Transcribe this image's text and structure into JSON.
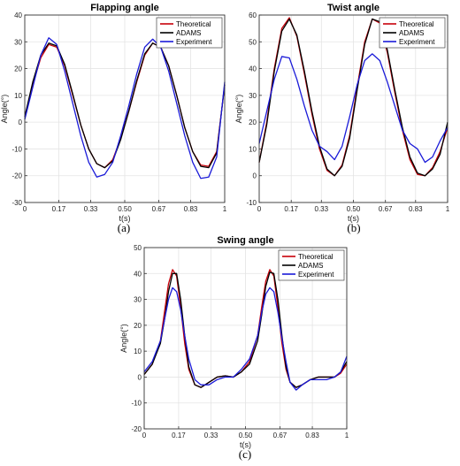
{
  "chart_data": [
    {
      "type": "line",
      "title": "Flapping angle",
      "xlabel": "t(s)",
      "ylabel": "Angle(°)",
      "caption": "(a)",
      "xlim": [
        0,
        1
      ],
      "ylim": [
        -30,
        40
      ],
      "xticks": [
        "0",
        "0.17",
        "0.33",
        "0.50",
        "0.67",
        "0.83",
        "1"
      ],
      "yticks": [
        "-30",
        "-20",
        "-10",
        "0",
        "10",
        "20",
        "30",
        "40"
      ],
      "legend_position": "top-right",
      "series": [
        {
          "name": "Theoretical",
          "color": "#c8000a",
          "x": [
            0,
            0.04,
            0.08,
            0.12,
            0.16,
            0.2,
            0.24,
            0.28,
            0.32,
            0.36,
            0.4,
            0.44,
            0.48,
            0.52,
            0.56,
            0.6,
            0.64,
            0.68,
            0.72,
            0.76,
            0.8,
            0.84,
            0.88,
            0.92,
            0.96,
            1.0
          ],
          "y": [
            2,
            14,
            24,
            29,
            28,
            21,
            10,
            -1,
            -10,
            -15.5,
            -17,
            -14,
            -6,
            4,
            15,
            25,
            29.5,
            28,
            21,
            10,
            -2,
            -11,
            -16,
            -16.5,
            -11,
            14
          ]
        },
        {
          "name": "ADAMS",
          "color": "#000000",
          "x": [
            0,
            0.04,
            0.08,
            0.12,
            0.16,
            0.2,
            0.24,
            0.28,
            0.32,
            0.36,
            0.4,
            0.44,
            0.48,
            0.52,
            0.56,
            0.6,
            0.64,
            0.68,
            0.72,
            0.76,
            0.8,
            0.84,
            0.88,
            0.92,
            0.96,
            1.0
          ],
          "y": [
            2,
            15,
            25,
            29.5,
            28.5,
            21.5,
            10.5,
            -1,
            -10,
            -15.5,
            -17,
            -14.5,
            -6.5,
            4,
            15.5,
            25.5,
            29.5,
            28,
            21,
            10,
            -2,
            -11,
            -16.5,
            -17,
            -11.5,
            14
          ]
        },
        {
          "name": "Experiment",
          "color": "#1a1ad8",
          "x": [
            0,
            0.04,
            0.08,
            0.12,
            0.16,
            0.2,
            0.24,
            0.28,
            0.32,
            0.36,
            0.4,
            0.44,
            0.48,
            0.52,
            0.56,
            0.6,
            0.64,
            0.68,
            0.72,
            0.76,
            0.8,
            0.84,
            0.88,
            0.92,
            0.96,
            1.0
          ],
          "y": [
            1,
            13,
            25,
            31.5,
            29,
            19,
            7,
            -5,
            -15,
            -20.5,
            -19.5,
            -15,
            -5,
            6,
            18,
            28,
            31,
            28,
            19,
            7,
            -5,
            -15,
            -21,
            -20.5,
            -13,
            15
          ]
        }
      ]
    },
    {
      "type": "line",
      "title": "Twist angle",
      "xlabel": "t(s)",
      "ylabel": "Angle(°)",
      "caption": "(b)",
      "xlim": [
        0,
        1
      ],
      "ylim": [
        -10,
        60
      ],
      "xticks": [
        "0",
        "0.17",
        "0.33",
        "0.50",
        "0.67",
        "0.83",
        "1"
      ],
      "yticks": [
        "-10",
        "0",
        "10",
        "20",
        "30",
        "40",
        "50",
        "60"
      ],
      "legend_position": "top-right",
      "series": [
        {
          "name": "Theoretical",
          "color": "#c8000a",
          "x": [
            0,
            0.04,
            0.08,
            0.12,
            0.16,
            0.2,
            0.24,
            0.28,
            0.32,
            0.36,
            0.4,
            0.44,
            0.48,
            0.52,
            0.56,
            0.6,
            0.64,
            0.68,
            0.72,
            0.76,
            0.8,
            0.84,
            0.88,
            0.92,
            0.96,
            1.0
          ],
          "y": [
            5,
            20,
            40,
            55,
            59,
            52,
            38,
            23,
            10,
            2,
            0,
            4,
            15,
            33,
            50,
            58.5,
            57,
            46,
            31,
            17,
            6,
            0.5,
            0,
            3,
            9,
            18
          ]
        },
        {
          "name": "ADAMS",
          "color": "#000000",
          "x": [
            0,
            0.04,
            0.08,
            0.12,
            0.16,
            0.2,
            0.24,
            0.28,
            0.32,
            0.36,
            0.4,
            0.44,
            0.48,
            0.52,
            0.56,
            0.6,
            0.64,
            0.68,
            0.72,
            0.76,
            0.8,
            0.84,
            0.88,
            0.92,
            0.96,
            1.0
          ],
          "y": [
            5,
            19,
            39,
            54,
            58.5,
            52.5,
            39,
            24,
            11,
            2.5,
            0,
            3.5,
            14,
            32,
            49,
            58.5,
            57.5,
            47,
            32,
            18,
            7,
            1,
            0,
            2.5,
            8,
            20
          ]
        },
        {
          "name": "Experiment",
          "color": "#1a1ad8",
          "x": [
            0,
            0.04,
            0.08,
            0.12,
            0.16,
            0.2,
            0.24,
            0.28,
            0.32,
            0.36,
            0.4,
            0.44,
            0.48,
            0.52,
            0.56,
            0.6,
            0.64,
            0.68,
            0.72,
            0.76,
            0.8,
            0.84,
            0.88,
            0.92,
            0.96,
            1.0
          ],
          "y": [
            12,
            24,
            36,
            44.5,
            44,
            36,
            26,
            17,
            11,
            9,
            6,
            11,
            22,
            34,
            43,
            45.5,
            43,
            35,
            26,
            17,
            12,
            10,
            5,
            7,
            13,
            18
          ]
        }
      ]
    },
    {
      "type": "line",
      "title": "Swing angle",
      "xlabel": "t(s)",
      "ylabel": "Angle(°)",
      "caption": "(c)",
      "xlim": [
        0,
        1
      ],
      "ylim": [
        -20,
        50
      ],
      "xticks": [
        "0",
        "0.17",
        "0.33",
        "0.50",
        "0.67",
        "0.83",
        "1"
      ],
      "yticks": [
        "-20",
        "-10",
        "0",
        "10",
        "20",
        "30",
        "40",
        "50"
      ],
      "legend_position": "top-right",
      "series": [
        {
          "name": "Theoretical",
          "color": "#c8000a",
          "x": [
            0,
            0.04,
            0.08,
            0.1,
            0.12,
            0.14,
            0.16,
            0.18,
            0.2,
            0.22,
            0.25,
            0.28,
            0.32,
            0.36,
            0.4,
            0.44,
            0.48,
            0.52,
            0.56,
            0.58,
            0.6,
            0.62,
            0.64,
            0.66,
            0.68,
            0.7,
            0.72,
            0.75,
            0.78,
            0.82,
            0.86,
            0.9,
            0.94,
            0.97,
            1.0
          ],
          "y": [
            1,
            5,
            14,
            25,
            36,
            41.5,
            39,
            27,
            13,
            3,
            -3,
            -4,
            -2,
            0,
            0.5,
            0,
            2,
            6,
            16,
            27,
            37,
            41.5,
            39,
            27,
            13,
            3,
            -2,
            -4,
            -3,
            -1,
            0,
            0,
            0,
            1.5,
            5
          ]
        },
        {
          "name": "ADAMS",
          "color": "#000000",
          "x": [
            0,
            0.04,
            0.08,
            0.1,
            0.12,
            0.14,
            0.16,
            0.18,
            0.2,
            0.22,
            0.25,
            0.28,
            0.32,
            0.36,
            0.4,
            0.44,
            0.48,
            0.52,
            0.56,
            0.58,
            0.6,
            0.62,
            0.64,
            0.66,
            0.68,
            0.7,
            0.72,
            0.75,
            0.78,
            0.82,
            0.86,
            0.9,
            0.94,
            0.97,
            1.0
          ],
          "y": [
            1,
            5,
            13,
            22,
            33,
            40,
            40,
            30,
            16,
            4,
            -3,
            -4,
            -2,
            0,
            0.5,
            0,
            2,
            5,
            14,
            24,
            35,
            40.5,
            40,
            30,
            16,
            4,
            -2,
            -4,
            -3,
            -1,
            0,
            0,
            0,
            2,
            6
          ]
        },
        {
          "name": "Experiment",
          "color": "#1a1ad8",
          "x": [
            0,
            0.04,
            0.08,
            0.1,
            0.12,
            0.14,
            0.16,
            0.18,
            0.2,
            0.22,
            0.25,
            0.28,
            0.32,
            0.36,
            0.4,
            0.44,
            0.48,
            0.52,
            0.56,
            0.58,
            0.6,
            0.62,
            0.64,
            0.66,
            0.68,
            0.7,
            0.72,
            0.75,
            0.78,
            0.82,
            0.86,
            0.9,
            0.94,
            0.97,
            1.0
          ],
          "y": [
            2,
            6,
            14,
            22,
            30,
            34.5,
            33,
            26,
            16,
            7,
            -1,
            -3,
            -3,
            -1,
            0,
            0,
            3,
            7,
            16,
            25,
            32,
            34.5,
            33,
            25,
            15,
            6,
            -2,
            -5,
            -3,
            -1,
            -1,
            -1,
            0,
            2,
            8
          ]
        }
      ]
    }
  ]
}
